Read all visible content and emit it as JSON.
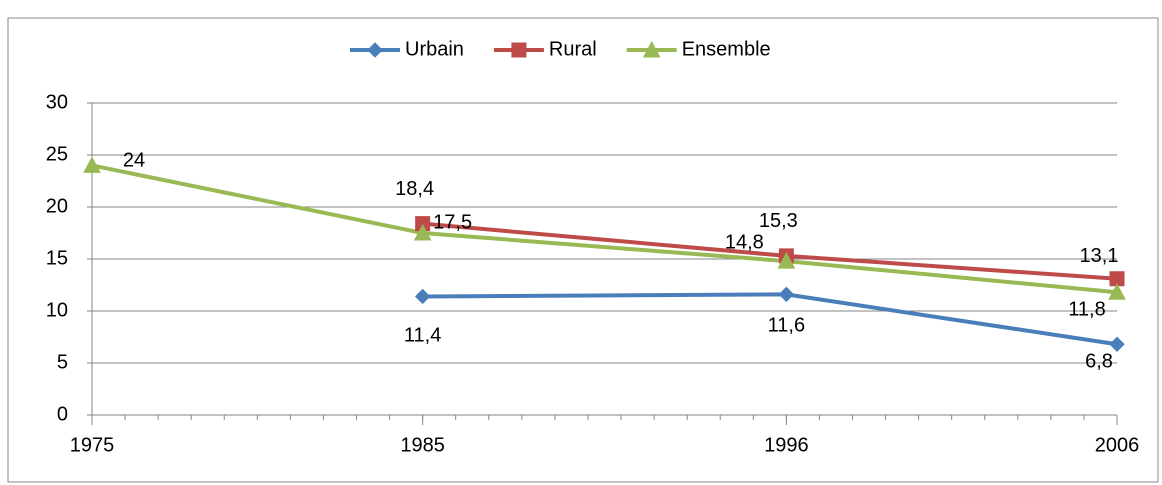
{
  "chart_data": {
    "type": "line",
    "x": [
      1975,
      1985,
      1996,
      2006
    ],
    "xlim": [
      1975,
      2006
    ],
    "xticks": [
      1975,
      1985,
      1996,
      2006
    ],
    "ylim": [
      0,
      30
    ],
    "yticks": [
      0,
      5,
      10,
      15,
      20,
      25,
      30
    ],
    "grid": true,
    "legend": "top",
    "series": [
      {
        "name": "Urbain",
        "color": "#4a7ebb",
        "marker": "diamond",
        "values": [
          null,
          11.4,
          11.6,
          6.8
        ],
        "value_labels": [
          null,
          "11,4",
          "11,6",
          "6,8"
        ]
      },
      {
        "name": "Rural",
        "color": "#be4b48",
        "marker": "square",
        "values": [
          null,
          18.4,
          15.3,
          13.1
        ],
        "value_labels": [
          null,
          "18,4",
          "15,3",
          "13,1"
        ]
      },
      {
        "name": "Ensemble",
        "color": "#98b954",
        "marker": "triangle",
        "values": [
          24,
          17.5,
          14.8,
          11.8
        ],
        "value_labels": [
          "24",
          "17,5",
          "14,8",
          "11,8"
        ]
      }
    ]
  }
}
